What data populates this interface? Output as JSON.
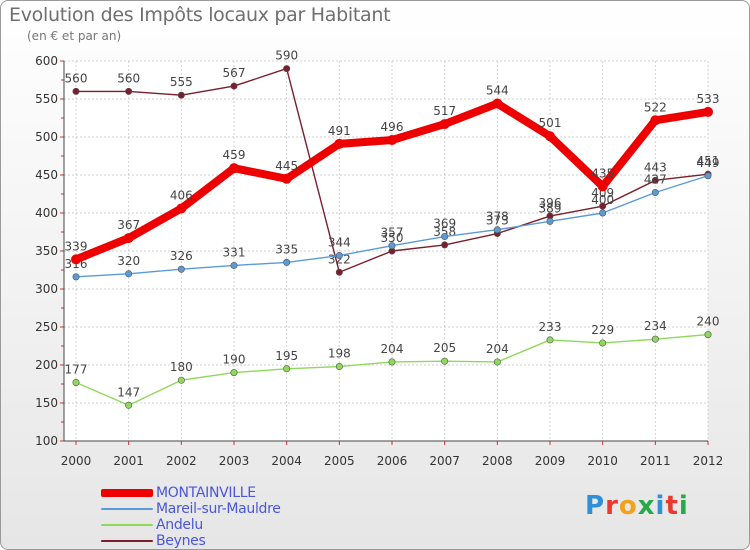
{
  "title": "Evolution des Impôts locaux par Habitant",
  "subtitle": "(en € et par an)",
  "logo": {
    "text": "Proxiti",
    "colors": [
      "#2f8fd8",
      "#e83a2e",
      "#f0a21c",
      "#27a84a",
      "#2f8fd8",
      "#e83a2e",
      "#27a84a"
    ]
  },
  "chart_data": {
    "type": "line",
    "categories": [
      "2000",
      "2001",
      "2002",
      "2003",
      "2004",
      "2005",
      "2006",
      "2007",
      "2008",
      "2009",
      "2010",
      "2011",
      "2012"
    ],
    "yticks": [
      "100",
      "150",
      "200",
      "250",
      "300",
      "350",
      "400",
      "450",
      "500",
      "550",
      "600"
    ],
    "ylim": [
      100,
      600
    ],
    "grid": true,
    "legend_position": "bottom-left",
    "series": [
      {
        "name": "Beynes",
        "color": "#7a1f2b",
        "values": [
          560,
          560,
          555,
          567,
          590,
          322,
          350,
          358,
          373,
          396,
          409,
          443,
          451
        ],
        "labels": [
          "560",
          "560",
          "555",
          "567",
          "590",
          "322",
          "350",
          "358",
          "373",
          "396",
          "409",
          "443",
          "451"
        ]
      },
      {
        "name": "Mareil-sur-Mauldre",
        "color": "#5b9bd5",
        "values": [
          316,
          320,
          326,
          331,
          335,
          344,
          357,
          369,
          378,
          389,
          400,
          427,
          449
        ],
        "labels": [
          "316",
          "320",
          "326",
          "331",
          "335",
          "344",
          "357",
          "369",
          "378",
          "389",
          "400",
          "427",
          "449"
        ]
      },
      {
        "name": "Andelu",
        "color": "#8ed85b",
        "values": [
          177,
          147,
          180,
          190,
          195,
          198,
          204,
          205,
          204,
          233,
          229,
          234,
          240
        ],
        "labels": [
          "177",
          "147",
          "180",
          "190",
          "195",
          "198",
          "204",
          "205",
          "204",
          "233",
          "229",
          "234",
          "240"
        ]
      },
      {
        "name": "MONTAINVILLE",
        "color": "#ee0000",
        "values": [
          339,
          367,
          406,
          459,
          445,
          491,
          496,
          517,
          544,
          501,
          435,
          522,
          533
        ],
        "labels": [
          "339",
          "367",
          "406",
          "459",
          "445",
          "491",
          "496",
          "517",
          "544",
          "501",
          "435",
          "522",
          "533"
        ]
      }
    ],
    "legend_order": [
      "MONTAINVILLE",
      "Mareil-sur-Mauldre",
      "Andelu",
      "Beynes"
    ]
  }
}
